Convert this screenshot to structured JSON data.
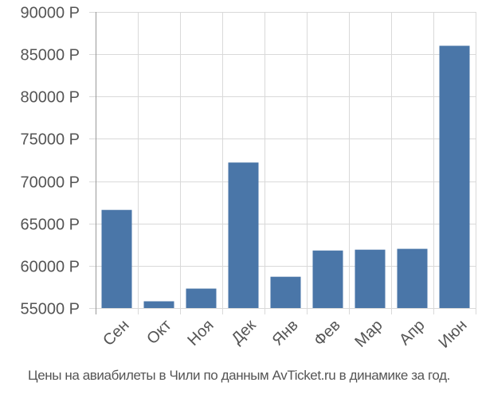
{
  "chart_data": {
    "type": "bar",
    "categories": [
      "Сен",
      "Окт",
      "Ноя",
      "Дек",
      "Янв",
      "Фев",
      "Мар",
      "Апр",
      "Июн"
    ],
    "values": [
      66600,
      55800,
      57300,
      72200,
      58700,
      61800,
      61900,
      62000,
      86000
    ],
    "ylim": [
      55000,
      90000
    ],
    "yticks": [
      55000,
      60000,
      65000,
      70000,
      75000,
      80000,
      85000,
      90000
    ],
    "ytick_labels": [
      "55000 Р",
      "60000 Р",
      "65000 Р",
      "70000 Р",
      "75000 Р",
      "80000 Р",
      "85000 Р",
      "90000 Р"
    ],
    "grid": true,
    "bar_color": "#4a76a8",
    "caption": "Цены на авиабилеты в Чили по данным AvTicket.ru в динамике за год."
  }
}
